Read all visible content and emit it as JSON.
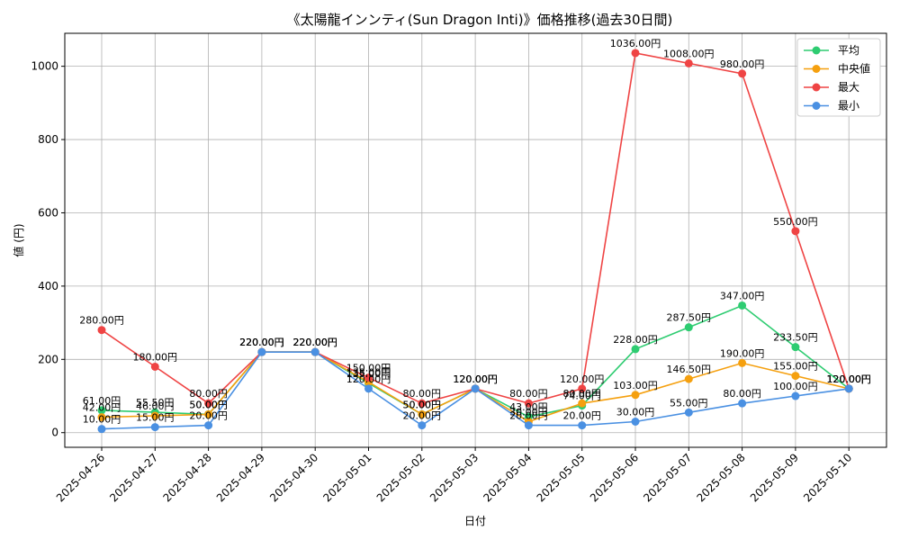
{
  "chart_data": {
    "type": "line",
    "title": "《太陽龍インンティ(Sun Dragon Inti)》価格推移(過去30日間)",
    "xlabel": "日付",
    "ylabel": "値 (円)",
    "ylim": [
      -40,
      1090
    ],
    "yticks": [
      0,
      200,
      400,
      600,
      800,
      1000
    ],
    "grid": true,
    "legend_position": "top-right",
    "categories": [
      "2025-04-26",
      "2025-04-27",
      "2025-04-28",
      "2025-04-29",
      "2025-04-30",
      "2025-05-01",
      "2025-05-02",
      "2025-05-03",
      "2025-05-04",
      "2025-05-05",
      "2025-05-06",
      "2025-05-07",
      "2025-05-08",
      "2025-05-09",
      "2025-05-10"
    ],
    "series": [
      {
        "name": "平均",
        "color": "#2ecc71",
        "values": [
          61,
          55.5,
          50,
          220,
          220,
          135,
          50,
          120,
          43,
          74,
          228,
          287.5,
          347,
          233.5,
          120
        ],
        "labels": [
          "61.00円",
          "55.50円",
          "50.00円",
          "220.00円",
          "220.00円",
          "135.00円",
          "50.00円",
          "120.00円",
          "43.00円",
          "74.00円",
          "228.00円",
          "287.50円",
          "347.00円",
          "233.50円",
          "120.00円"
        ]
      },
      {
        "name": "中央値",
        "color": "#f5a00f",
        "values": [
          42,
          46,
          50,
          220,
          220,
          138,
          50,
          120,
          30,
          80,
          103,
          146.5,
          190,
          155,
          120
        ],
        "labels": [
          "42.00円",
          "46.00円",
          "50.00円",
          "220.00円",
          "220.00円",
          "138.00円",
          "50.00円",
          "120.00円",
          "30.00円",
          "80.00円",
          "103.00円",
          "146.50円",
          "190.00円",
          "155.00円",
          "120.00円"
        ]
      },
      {
        "name": "最大",
        "color": "#ef4444",
        "values": [
          280,
          180,
          80,
          220,
          220,
          150,
          80,
          120,
          80,
          120,
          1036,
          1008,
          980,
          550,
          120
        ],
        "labels": [
          "280.00円",
          "180.00円",
          "80.00円",
          "220.00円",
          "220.00円",
          "150.00円",
          "80.00円",
          "120.00円",
          "80.00円",
          "120.00円",
          "1036.00円",
          "1008.00円",
          "980.00円",
          "550.00円",
          "120.00円"
        ]
      },
      {
        "name": "最小",
        "color": "#4a90e2",
        "values": [
          10,
          15,
          20,
          220,
          220,
          120,
          20,
          120,
          20,
          20,
          30,
          55,
          80,
          100,
          120
        ],
        "labels": [
          "10.00円",
          "15.00円",
          "20.00円",
          "220.00円",
          "220.00円",
          "120.00円",
          "20.00円",
          "120.00円",
          "20.00円",
          "20.00円",
          "30.00円",
          "55.00円",
          "80.00円",
          "100.00円",
          "120.00円"
        ]
      }
    ]
  }
}
